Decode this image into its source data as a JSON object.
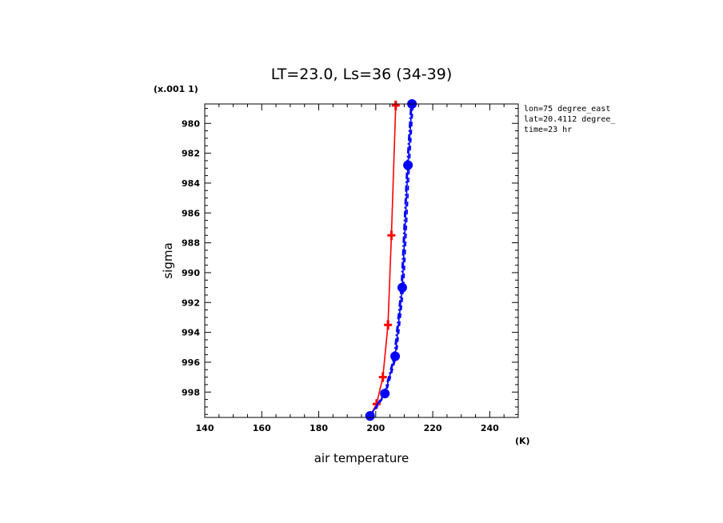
{
  "chart_data": {
    "type": "line",
    "title": "LT=23.0, Ls=36 (34-39)",
    "xlabel": "air temperature",
    "ylabel": "sigma",
    "x_unit": "(K)",
    "y_scale_note": "(x.001 1)",
    "xlim": [
      140,
      250
    ],
    "ylim": [
      999.7,
      978.7
    ],
    "y_inverted": true,
    "x_ticks_major": [
      140,
      160,
      180,
      200,
      220,
      240
    ],
    "x_ticks_minor_step": 5,
    "y_ticks_major": [
      980,
      982,
      984,
      986,
      988,
      990,
      992,
      994,
      996,
      998
    ],
    "y_ticks_minor_step": 0.5,
    "grid": false,
    "info_lines": [
      "lon=75 degree_east",
      "lat=20.4112 degree_",
      "time=23 hr"
    ],
    "series": [
      {
        "color": "#ff0000",
        "marker": "plus",
        "line_style": "solid",
        "points": [
          {
            "x": 198.0,
            "y": 999.6
          },
          {
            "x": 200.3,
            "y": 998.8
          },
          {
            "x": 202.5,
            "y": 997.0
          },
          {
            "x": 204.3,
            "y": 993.5
          },
          {
            "x": 205.5,
            "y": 987.5
          },
          {
            "x": 207.0,
            "y": 978.8
          }
        ]
      },
      {
        "color": "#0000ff",
        "marker": "circle",
        "line_style": "solid",
        "points": [
          {
            "x": 198.0,
            "y": 999.6
          },
          {
            "x": 203.2,
            "y": 998.1
          },
          {
            "x": 206.8,
            "y": 995.6
          },
          {
            "x": 209.3,
            "y": 991.0
          },
          {
            "x": 211.3,
            "y": 982.8
          },
          {
            "x": 212.7,
            "y": 978.7
          }
        ]
      },
      {
        "color": "#0000ff",
        "marker": "none",
        "line_style": "dashed",
        "points": [
          {
            "x": 198.3,
            "y": 999.6
          },
          {
            "x": 203.6,
            "y": 998.1
          },
          {
            "x": 207.2,
            "y": 995.6
          },
          {
            "x": 209.8,
            "y": 991.0
          },
          {
            "x": 211.8,
            "y": 982.8
          },
          {
            "x": 213.1,
            "y": 978.7
          }
        ]
      },
      {
        "color": "#0000ff",
        "marker": "none",
        "line_style": "dash-dot",
        "points": [
          {
            "x": 197.8,
            "y": 999.6
          },
          {
            "x": 202.9,
            "y": 998.1
          },
          {
            "x": 206.4,
            "y": 995.6
          },
          {
            "x": 208.9,
            "y": 991.0
          },
          {
            "x": 210.9,
            "y": 982.8
          },
          {
            "x": 212.3,
            "y": 978.7
          }
        ]
      }
    ]
  }
}
